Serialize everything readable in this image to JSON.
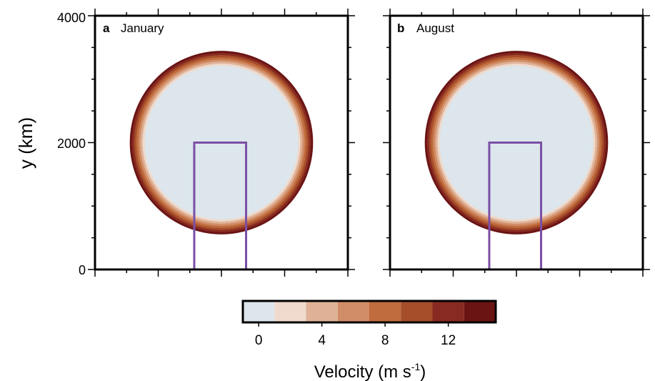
{
  "chart_data": [
    {
      "type": "heatmap",
      "panel_letter": "a",
      "title": "January",
      "ylabel": "y (km)",
      "xlabel": "",
      "xlim": [
        0,
        4000
      ],
      "ylim": [
        0,
        4000
      ],
      "yticks": [
        "0",
        "2000",
        "4000"
      ],
      "grid": false,
      "field": {
        "shape": "circular ring",
        "center_km": [
          2000,
          2000
        ],
        "outer_radius_km": 1450,
        "inner_radius_km": 1180,
        "interior_velocity": 0,
        "edge_velocity": 14
      },
      "box_outline_km": {
        "x0": 1570,
        "x1": 2390,
        "y0": 0,
        "y1": 2000,
        "color": "#7b4fa6"
      }
    },
    {
      "type": "heatmap",
      "panel_letter": "b",
      "title": "August",
      "ylabel": "",
      "xlabel": "",
      "xlim": [
        0,
        4000
      ],
      "ylim": [
        0,
        4000
      ],
      "grid": false,
      "field": {
        "shape": "circular ring",
        "center_km": [
          2000,
          2000
        ],
        "outer_radius_km": 1450,
        "inner_radius_km": 1180,
        "interior_velocity": 0,
        "edge_velocity": 14
      },
      "box_outline_km": {
        "x0": 1570,
        "x1": 2390,
        "y0": 0,
        "y1": 2000,
        "color": "#7b4fa6"
      }
    }
  ],
  "colorbar": {
    "label_main": "Velocity (m s",
    "label_sup": "-1",
    "label_close": ")",
    "range": [
      -1,
      15
    ],
    "ticks": [
      {
        "value": 0,
        "label": "0"
      },
      {
        "value": 4,
        "label": "4"
      },
      {
        "value": 8,
        "label": "8"
      },
      {
        "value": 12,
        "label": "12"
      }
    ],
    "bins": [
      {
        "from": -1,
        "to": 1,
        "color": "#dce6ec"
      },
      {
        "from": 1,
        "to": 3,
        "color": "#efdacd"
      },
      {
        "from": 3,
        "to": 5,
        "color": "#dfb297"
      },
      {
        "from": 5,
        "to": 7,
        "color": "#d18d67"
      },
      {
        "from": 7,
        "to": 9,
        "color": "#c06c3e"
      },
      {
        "from": 9,
        "to": 11,
        "color": "#a64d2a"
      },
      {
        "from": 11,
        "to": 13,
        "color": "#882a21"
      },
      {
        "from": 13,
        "to": 15,
        "color": "#6a1414"
      }
    ]
  }
}
